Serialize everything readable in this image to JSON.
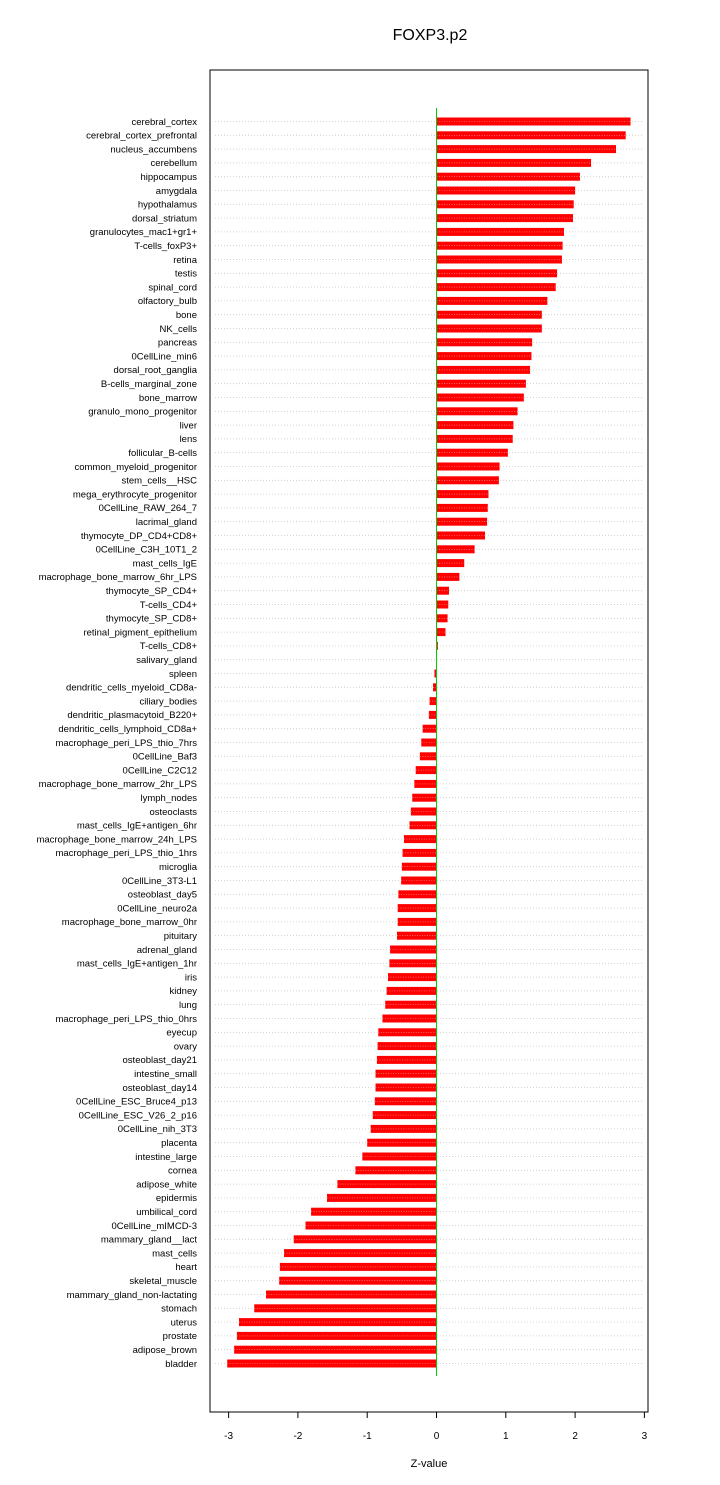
{
  "chart_data": {
    "type": "bar",
    "orientation": "horizontal",
    "title": "FOXP3.p2",
    "xlabel": "Z-value",
    "ylabel": "",
    "xlim": [
      -3.3,
      3.05
    ],
    "xticks": [
      -3,
      -2,
      -1,
      0,
      1,
      2,
      3
    ],
    "grid": "dotted horizontal per category",
    "bar_color": "#ff0000",
    "zero_line_color": "#00cc00",
    "categories": [
      "cerebral_cortex",
      "cerebral_cortex_prefrontal",
      "nucleus_accumbens",
      "cerebellum",
      "hippocampus",
      "amygdala",
      "hypothalamus",
      "dorsal_striatum",
      "granulocytes_mac1+gr1+",
      "T-cells_foxP3+",
      "retina",
      "testis",
      "spinal_cord",
      "olfactory_bulb",
      "bone",
      "NK_cells",
      "pancreas",
      "0CellLine_min6",
      "dorsal_root_ganglia",
      "B-cells_marginal_zone",
      "bone_marrow",
      "granulo_mono_progenitor",
      "liver",
      "lens",
      "follicular_B-cells",
      "common_myeloid_progenitor",
      "stem_cells__HSC",
      "mega_erythrocyte_progenitor",
      "0CellLine_RAW_264_7",
      "lacrimal_gland",
      "thymocyte_DP_CD4+CD8+",
      "0CellLine_C3H_10T1_2",
      "mast_cells_IgE",
      "macrophage_bone_marrow_6hr_LPS",
      "thymocyte_SP_CD4+",
      "T-cells_CD4+",
      "thymocyte_SP_CD8+",
      "retinal_pigment_epithelium",
      "T-cells_CD8+",
      "salivary_gland",
      "spleen",
      "dendritic_cells_myeloid_CD8a-",
      "ciliary_bodies",
      "dendritic_plasmacytoid_B220+",
      "dendritic_cells_lymphoid_CD8a+",
      "macrophage_peri_LPS_thio_7hrs",
      "0CellLine_Baf3",
      "0CellLine_C2C12",
      "macrophage_bone_marrow_2hr_LPS",
      "lymph_nodes",
      "osteoclasts",
      "mast_cells_IgE+antigen_6hr",
      "macrophage_bone_marrow_24h_LPS",
      "macrophage_peri_LPS_thio_1hrs",
      "microglia",
      "0CellLine_3T3-L1",
      "osteoblast_day5",
      "0CellLine_neuro2a",
      "macrophage_bone_marrow_0hr",
      "pituitary",
      "adrenal_gland",
      "mast_cells_IgE+antigen_1hr",
      "iris",
      "kidney",
      "lung",
      "macrophage_peri_LPS_thio_0hrs",
      "eyecup",
      "ovary",
      "osteoblast_day21",
      "intestine_small",
      "osteoblast_day14",
      "0CellLine_ESC_Bruce4_p13",
      "0CellLine_ESC_V26_2_p16",
      "0CellLine_nih_3T3",
      "placenta",
      "intestine_large",
      "cornea",
      "adipose_white",
      "epidermis",
      "umbilical_cord",
      "0CellLine_mIMCD-3",
      "mammary_gland__lact",
      "mast_cells",
      "heart",
      "skeletal_muscle",
      "mammary_gland_non-lactating",
      "stomach",
      "uterus",
      "prostate",
      "adipose_brown",
      "bladder"
    ],
    "values": [
      2.8,
      2.73,
      2.59,
      2.23,
      2.07,
      2.0,
      1.98,
      1.97,
      1.84,
      1.82,
      1.81,
      1.74,
      1.72,
      1.6,
      1.52,
      1.52,
      1.38,
      1.37,
      1.35,
      1.29,
      1.26,
      1.17,
      1.11,
      1.1,
      1.03,
      0.91,
      0.9,
      0.75,
      0.74,
      0.73,
      0.7,
      0.55,
      0.4,
      0.33,
      0.18,
      0.17,
      0.16,
      0.13,
      0.02,
      0.0,
      -0.03,
      -0.05,
      -0.1,
      -0.11,
      -0.2,
      -0.22,
      -0.24,
      -0.3,
      -0.32,
      -0.35,
      -0.37,
      -0.39,
      -0.47,
      -0.49,
      -0.5,
      -0.51,
      -0.55,
      -0.56,
      -0.56,
      -0.57,
      -0.67,
      -0.68,
      -0.7,
      -0.72,
      -0.74,
      -0.78,
      -0.84,
      -0.85,
      -0.86,
      -0.88,
      -0.88,
      -0.89,
      -0.92,
      -0.95,
      -1.0,
      -1.07,
      -1.17,
      -1.43,
      -1.58,
      -1.81,
      -1.89,
      -2.06,
      -2.2,
      -2.26,
      -2.27,
      -2.46,
      -2.63,
      -2.85,
      -2.88,
      -2.92,
      -3.02
    ]
  }
}
